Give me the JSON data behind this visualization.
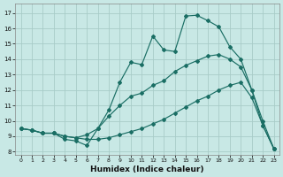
{
  "xlabel": "Humidex (Indice chaleur)",
  "bg_color": "#c8e8e5",
  "grid_color": "#a8ccc8",
  "line_color": "#1a6e64",
  "xlim": [
    -0.5,
    23.5
  ],
  "ylim": [
    7.8,
    17.6
  ],
  "xticks": [
    0,
    1,
    2,
    3,
    4,
    5,
    6,
    7,
    8,
    9,
    10,
    11,
    12,
    13,
    14,
    15,
    16,
    17,
    18,
    19,
    20,
    21,
    22,
    23
  ],
  "yticks": [
    8,
    9,
    10,
    11,
    12,
    13,
    14,
    15,
    16,
    17
  ],
  "hours": [
    0,
    1,
    2,
    3,
    4,
    5,
    6,
    7,
    8,
    9,
    10,
    11,
    12,
    13,
    14,
    15,
    16,
    17,
    18,
    19,
    20,
    21,
    22,
    23
  ],
  "line_max": [
    9.5,
    9.4,
    9.2,
    9.2,
    8.8,
    8.7,
    8.4,
    9.5,
    10.7,
    12.5,
    13.8,
    13.65,
    15.5,
    14.6,
    14.5,
    16.8,
    16.85,
    16.5,
    16.1,
    14.8,
    14.0,
    12.0,
    9.7,
    8.2
  ],
  "line_upper_trend": [
    9.5,
    9.4,
    9.2,
    9.2,
    9.0,
    8.9,
    9.1,
    9.5,
    10.3,
    11.0,
    11.6,
    11.8,
    12.3,
    12.6,
    13.2,
    13.6,
    13.9,
    14.2,
    14.3,
    14.0,
    13.5,
    12.0,
    10.0,
    8.2
  ],
  "line_lower_trend": [
    9.5,
    9.4,
    9.2,
    9.2,
    9.0,
    8.9,
    8.8,
    8.8,
    8.9,
    9.1,
    9.3,
    9.5,
    9.8,
    10.1,
    10.5,
    10.9,
    11.3,
    11.6,
    12.0,
    12.3,
    12.5,
    11.5,
    9.7,
    8.2
  ]
}
